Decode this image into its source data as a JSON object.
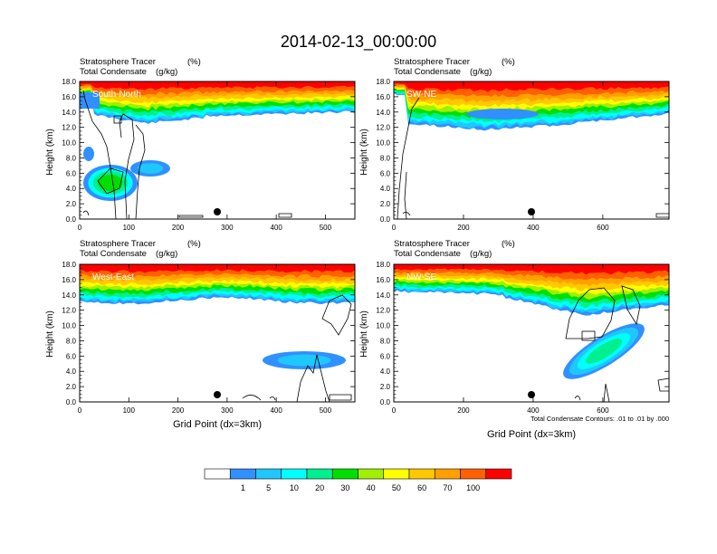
{
  "title": "2014-02-13_00:00:00",
  "palette": [
    "#ffffff",
    "#3090ff",
    "#1ec8ff",
    "#00ffff",
    "#00f090",
    "#00e000",
    "#a0f000",
    "#ffff00",
    "#ffc800",
    "#ffa000",
    "#ff6000",
    "#ff0000"
  ],
  "colorbar": {
    "labels": [
      "1",
      "5",
      "10",
      "20",
      "30",
      "40",
      "50",
      "60",
      "70",
      "100"
    ]
  },
  "footnote": "Total Condensate Contours: .01 to .01 by .000",
  "chart_data": [
    {
      "type": "heatmap",
      "panel": "South-North",
      "subtitle_1": "Stratosphere Tracer",
      "units_1": "(%)",
      "subtitle_2": "Total Condensate",
      "units_2": "(g/kg)",
      "ylabel": "Height (km)",
      "xlabel": "",
      "xlim": [
        0,
        560
      ],
      "ylim": [
        0,
        18
      ],
      "xticks": [
        "0",
        "100",
        "200",
        "300",
        "400",
        "500"
      ],
      "yticks": [
        "0.0",
        "2.0",
        "4.0",
        "6.0",
        "8.0",
        "10.0",
        "12.0",
        "14.0",
        "16.0",
        "18.0"
      ],
      "marker": 280
    },
    {
      "type": "heatmap",
      "panel": "SW-NE",
      "subtitle_1": "Stratosphere Tracer",
      "units_1": "(%)",
      "subtitle_2": "Total Condensate",
      "units_2": "(g/kg)",
      "ylabel": "Height (km)",
      "xlabel": "",
      "xlim": [
        0,
        790
      ],
      "ylim": [
        0,
        18
      ],
      "xticks": [
        "0",
        "200",
        "400",
        "600"
      ],
      "yticks": [
        "0.0",
        "2.0",
        "4.0",
        "6.0",
        "8.0",
        "10.0",
        "12.0",
        "14.0",
        "16.0",
        "18.0"
      ],
      "marker": 395
    },
    {
      "type": "heatmap",
      "panel": "West-East",
      "subtitle_1": "Stratosphere Tracer",
      "units_1": "(%)",
      "subtitle_2": "Total Condensate",
      "units_2": "(g/kg)",
      "ylabel": "Height (km)",
      "xlabel": "Grid Point (dx=3km)",
      "xlim": [
        0,
        560
      ],
      "ylim": [
        0,
        18
      ],
      "xticks": [
        "0",
        "100",
        "200",
        "300",
        "400",
        "500"
      ],
      "yticks": [
        "0.0",
        "2.0",
        "4.0",
        "6.0",
        "8.0",
        "10.0",
        "12.0",
        "14.0",
        "16.0",
        "18.0"
      ],
      "marker": 280
    },
    {
      "type": "heatmap",
      "panel": "NW-SE",
      "subtitle_1": "Stratosphere Tracer",
      "units_1": "(%)",
      "subtitle_2": "Total Condensate",
      "units_2": "(g/kg)",
      "ylabel": "Height (km)",
      "xlabel": "Grid Point (dx=3km)",
      "xlim": [
        0,
        790
      ],
      "ylim": [
        0,
        18
      ],
      "xticks": [
        "0",
        "200",
        "400",
        "600"
      ],
      "yticks": [
        "0.0",
        "2.0",
        "4.0",
        "6.0",
        "8.0",
        "10.0",
        "12.0",
        "14.0",
        "16.0",
        "18.0"
      ],
      "marker": 395
    }
  ]
}
